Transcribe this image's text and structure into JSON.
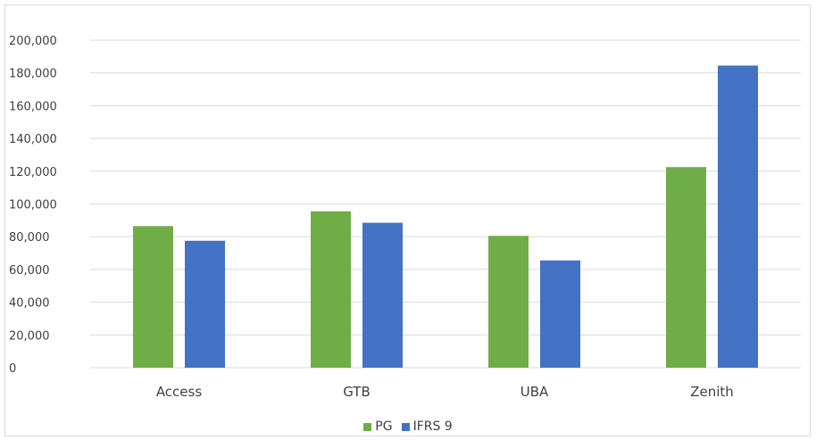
{
  "colors": {
    "PG": "#70ad47",
    "IFRS 9": "#4472c4",
    "grid": "#d9d9d9",
    "text": "#404040"
  },
  "chart_data": {
    "type": "bar",
    "title": "",
    "xlabel": "",
    "ylabel": "",
    "categories": [
      "Access",
      "GTB",
      "UBA",
      "Zenith"
    ],
    "series": [
      {
        "name": "PG",
        "values": [
          86500,
          95500,
          80500,
          122500
        ]
      },
      {
        "name": "IFRS 9",
        "values": [
          77500,
          88500,
          65500,
          184500
        ]
      }
    ],
    "ylim": [
      0,
      200000
    ],
    "yticks": [
      0,
      20000,
      40000,
      60000,
      80000,
      100000,
      120000,
      140000,
      160000,
      180000,
      200000
    ],
    "ytick_labels": [
      "0",
      "20,000",
      "40,000",
      "60,000",
      "80,000",
      "100,000",
      "120,000",
      "140,000",
      "160,000",
      "180,000",
      "200,000"
    ],
    "grid": true,
    "legend_position": "bottom"
  }
}
